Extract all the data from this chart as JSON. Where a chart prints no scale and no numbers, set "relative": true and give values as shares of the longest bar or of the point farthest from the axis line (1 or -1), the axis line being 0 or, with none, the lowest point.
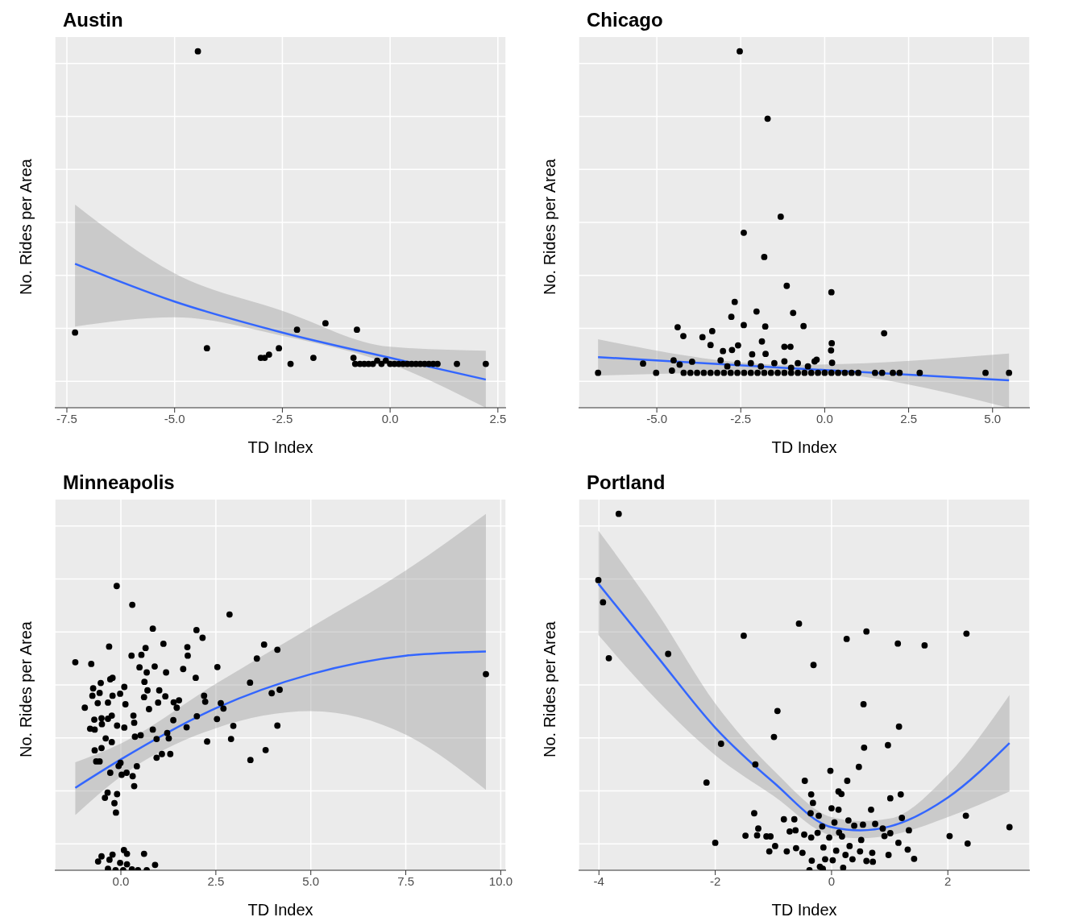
{
  "chart_data": [
    {
      "type": "scatter",
      "title": "Austin",
      "xlabel": "TD Index",
      "ylabel": "No. Rides per Area",
      "relative": true,
      "grid": true,
      "xlim": [
        -7.78,
        2.69
      ],
      "xticks": [
        -7.5,
        {
          "value": -5,
          "label": "-5.0"
        },
        -2.5,
        {
          "value": 0,
          "label": "0.0"
        },
        2.5
      ],
      "series": [
        {
          "color": "#000000",
          "marker": "circle",
          "x": [
            -4.46,
            -7.31,
            -4.25,
            -2.16,
            -1.5,
            -0.77,
            -2.58,
            -2.81,
            -3.0,
            -2.91,
            -2.31,
            -1.78,
            -0.7,
            -0.85,
            -0.81,
            -0.6,
            -0.5,
            -0.4,
            -0.3,
            -0.2,
            -0.1,
            0,
            0.1,
            0.2,
            0.3,
            0.4,
            0.5,
            0.6,
            0.7,
            0.8,
            0.9,
            1.0,
            1.1,
            1.55,
            2.22
          ],
          "values": [
            1.0,
            0.211,
            0.167,
            0.219,
            0.237,
            0.219,
            0.167,
            0.149,
            0.14,
            0.14,
            0.123,
            0.14,
            0.123,
            0.14,
            0.123,
            0.123,
            0.123,
            0.123,
            0.132,
            0.123,
            0.132,
            0.123,
            0.123,
            0.123,
            0.123,
            0.123,
            0.123,
            0.123,
            0.123,
            0.123,
            0.123,
            0.123,
            0.123,
            0.123,
            0.123
          ]
        },
        {
          "type": "line",
          "color": "#3366ff",
          "marker": "none",
          "line_style": "solid",
          "x": [
            -7.31,
            -5,
            -2.5,
            0,
            2.22
          ],
          "values": [
            0.404,
            0.298,
            0.211,
            0.14,
            0.079
          ],
          "lower": [
            0.228,
            0.254,
            0.202,
            0.123,
            0
          ],
          "upper": [
            0.57,
            0.377,
            0.272,
            0.171,
            0.16
          ]
        }
      ]
    },
    {
      "type": "scatter",
      "title": "Chicago",
      "xlabel": "TD Index",
      "ylabel": "No. Rides per Area",
      "relative": true,
      "grid": true,
      "xlim": [
        -7.33,
        6.11
      ],
      "xticks": [
        {
          "value": -5,
          "label": "-5.0"
        },
        -2.5,
        {
          "value": 0,
          "label": "0.0"
        },
        2.5,
        {
          "value": 5,
          "label": "5.0"
        }
      ],
      "series": [
        {
          "color": "#000000",
          "marker": "circle",
          "x": [
            -2.53,
            -1.7,
            -1.31,
            -2.41,
            -1.8,
            -1.13,
            0.2,
            -2.68,
            -2.03,
            -0.94,
            -2.78,
            -2.41,
            -1.77,
            -0.63,
            -4.38,
            1.77,
            -4.21,
            -3.35,
            -3.64,
            -3.4,
            -1.87,
            0.21,
            -1.2,
            -1.02,
            -2.58,
            -3.03,
            -2.76,
            -2.16,
            -1.76,
            0.19,
            0.22,
            -0.24,
            -5.41,
            -4.5,
            -3.95,
            -3.1,
            -6.75,
            -5.02,
            -4.55,
            -4.32,
            1.5,
            1.71,
            2.03,
            2.23,
            2.83,
            4.79,
            5.49,
            -4.2,
            -4.0,
            -3.8,
            -3.6,
            -3.4,
            -3.2,
            -3.0,
            -2.8,
            -2.6,
            -2.4,
            -2.2,
            -2.0,
            -1.8,
            -1.6,
            -1.4,
            -1.2,
            -1.0,
            -0.8,
            -0.6,
            -0.4,
            -0.2,
            0,
            0.2,
            0.4,
            0.6,
            0.8,
            1.0,
            -2.6,
            -2.2,
            -1.9,
            -1.5,
            -1.2,
            -0.8,
            -0.5,
            -0.3,
            -2.9,
            -1.0
          ],
          "values": [
            1.0,
            0.811,
            0.536,
            0.491,
            0.423,
            0.342,
            0.324,
            0.297,
            0.27,
            0.266,
            0.255,
            0.232,
            0.228,
            0.229,
            0.226,
            0.209,
            0.201,
            0.215,
            0.198,
            0.176,
            0.186,
            0.181,
            0.171,
            0.171,
            0.175,
            0.159,
            0.162,
            0.15,
            0.151,
            0.161,
            0.126,
            0.135,
            0.124,
            0.133,
            0.129,
            0.133,
            0.098,
            0.098,
            0.104,
            0.121,
            0.098,
            0.098,
            0.098,
            0.098,
            0.098,
            0.098,
            0.098,
            0.098,
            0.098,
            0.098,
            0.098,
            0.098,
            0.098,
            0.098,
            0.098,
            0.098,
            0.098,
            0.098,
            0.098,
            0.098,
            0.098,
            0.098,
            0.098,
            0.098,
            0.098,
            0.098,
            0.098,
            0.098,
            0.098,
            0.098,
            0.098,
            0.098,
            0.098,
            0.098,
            0.125,
            0.125,
            0.116,
            0.125,
            0.13,
            0.125,
            0.116,
            0.13,
            0.116,
            0.112
          ]
        },
        {
          "type": "line",
          "color": "#3366ff",
          "marker": "none",
          "line_style": "solid",
          "x": [
            -6.75,
            -1,
            5.49
          ],
          "values": [
            0.142,
            0.111,
            0.077
          ],
          "lower": [
            0.09,
            0.102,
            0
          ],
          "upper": [
            0.192,
            0.12,
            0.152
          ]
        }
      ]
    },
    {
      "type": "scatter",
      "title": "Minneapolis",
      "xlabel": "TD Index",
      "ylabel": "No. Rides per Area",
      "relative": true,
      "grid": true,
      "xlim": [
        -1.74,
        10.14
      ],
      "xticks": [
        {
          "value": 0,
          "label": "0.0"
        },
        2.5,
        {
          "value": 5,
          "label": "5.0"
        },
        7.5,
        {
          "value": 10,
          "label": "10.0"
        }
      ],
      "series": [
        {
          "color": "#000000",
          "marker": "circle",
          "x": [
            -0.11,
            0.3,
            2.86,
            0.84,
            1.99,
            2.15,
            1.12,
            -0.31,
            3.77,
            4.12,
            1.75,
            0.65,
            1.76,
            0.28,
            0.54,
            3.58,
            -1.2,
            -0.78,
            0.89,
            0.49,
            2.54,
            1.64,
            0.68,
            1.19,
            1.97,
            -0.28,
            -0.22,
            0.62,
            -0.53,
            3.4,
            0.09,
            -0.73,
            -0.56,
            0.7,
            1.01,
            -0.02,
            -0.22,
            -0.75,
            1.17,
            0.61,
            2.19,
            3.97,
            4.18,
            1.53,
            1.39,
            -0.34,
            -0.61,
            0.12,
            0.98,
            2.22,
            2.63,
            -0.95,
            1.47,
            2.7,
            0.74,
            0.33,
            -0.24,
            -0.51,
            2.0,
            -0.7,
            -0.34,
            1.38,
            2.53,
            0.35,
            -0.5,
            -0.1,
            0.09,
            2.96,
            4.12,
            1.73,
            -0.81,
            -0.69,
            0.84,
            1.22,
            0.52,
            0.37,
            -0.4,
            0.94,
            1.26,
            2.9,
            -0.24,
            2.27,
            -0.51,
            -0.69,
            3.81,
            1.08,
            1.3,
            0.94,
            3.41,
            -0.65,
            -0.56,
            -0.01,
            -0.06,
            0.42,
            -0.28,
            0.02,
            0.15,
            0.31,
            0.35,
            -0.35,
            -0.1,
            -0.42,
            -0.17,
            -0.13,
            9.61,
            0.08,
            0.16,
            0.61,
            -0.51,
            -0.22,
            -0.6,
            -0.3,
            -0.02,
            0.16,
            0.9,
            -0.34,
            -0.14,
            0.06,
            0.29,
            0.45,
            0.68
          ],
          "values": [
            1.0,
            0.934,
            0.9,
            0.85,
            0.845,
            0.818,
            0.797,
            0.787,
            0.794,
            0.776,
            0.785,
            0.782,
            0.755,
            0.755,
            0.758,
            0.745,
            0.732,
            0.726,
            0.717,
            0.714,
            0.715,
            0.708,
            0.696,
            0.696,
            0.677,
            0.672,
            0.677,
            0.663,
            0.659,
            0.66,
            0.645,
            0.64,
            0.624,
            0.633,
            0.633,
            0.621,
            0.614,
            0.614,
            0.612,
            0.609,
            0.614,
            0.623,
            0.635,
            0.598,
            0.591,
            0.59,
            0.588,
            0.584,
            0.59,
            0.593,
            0.588,
            0.572,
            0.572,
            0.569,
            0.567,
            0.544,
            0.544,
            0.535,
            0.542,
            0.53,
            0.533,
            0.528,
            0.532,
            0.519,
            0.514,
            0.509,
            0.502,
            0.508,
            0.509,
            0.503,
            0.498,
            0.495,
            0.495,
            0.483,
            0.475,
            0.47,
            0.464,
            0.462,
            0.464,
            0.462,
            0.451,
            0.453,
            0.43,
            0.422,
            0.423,
            0.409,
            0.409,
            0.396,
            0.388,
            0.383,
            0.383,
            0.378,
            0.367,
            0.366,
            0.343,
            0.336,
            0.343,
            0.331,
            0.296,
            0.273,
            0.268,
            0.255,
            0.236,
            0.203,
            0.69,
            0.071,
            0.058,
            0.058,
            0.049,
            0.055,
            0.031,
            0.037,
            0.026,
            0.021,
            0.019,
            0.005,
            0,
            0,
            0.003,
            0,
            0
          ]
        },
        {
          "type": "line",
          "color": "#3366ff",
          "marker": "none",
          "line_style": "solid",
          "x": [
            -1.2,
            0,
            2.5,
            5,
            7.5,
            9.61
          ],
          "values": [
            0.29,
            0.39,
            0.57,
            0.69,
            0.755,
            0.77
          ],
          "lower": [
            0.194,
            0.33,
            0.5,
            0.56,
            0.477,
            0.283
          ],
          "upper": [
            0.38,
            0.446,
            0.656,
            0.855,
            1.055,
            1.254
          ]
        }
      ]
    },
    {
      "type": "scatter",
      "title": "Portland",
      "xlabel": "TD Index",
      "ylabel": "No. Rides per Area",
      "relative": true,
      "grid": true,
      "xlim": [
        -4.35,
        3.41
      ],
      "xticks": [
        -4,
        -2,
        0,
        2
      ],
      "series": [
        {
          "color": "#000000",
          "marker": "circle",
          "x": [
            -3.66,
            -4.01,
            -3.93,
            -3.83,
            -2.81,
            -1.51,
            -0.56,
            0.26,
            0.6,
            -0.31,
            1.14,
            1.6,
            2.32,
            0.55,
            -0.93,
            1.16,
            -0.99,
            -1.9,
            0.56,
            0.97,
            -1.31,
            0.47,
            -0.02,
            -2.15,
            -0.46,
            0.27,
            0.12,
            0.17,
            -0.35,
            1.19,
            1.01,
            -0.32,
            0.0,
            0.12,
            0.68,
            -1.33,
            -0.36,
            -0.22,
            2.31,
            1.21,
            -0.82,
            -0.64,
            0.05,
            0.29,
            0.54,
            0.75,
            -0.16,
            0.39,
            3.06,
            -1.26,
            -0.72,
            -0.62,
            1.33,
            0.88,
            1.01,
            -0.24,
            0.13,
            -0.47,
            -1.48,
            -1.28,
            -1.12,
            -1.05,
            2.03,
            0.18,
            -0.04,
            -0.35,
            0.91,
            0.51,
            -2.0,
            2.34,
            1.15,
            -0.97,
            0.31,
            -0.61,
            -0.14,
            1.31,
            -1.07,
            -0.77,
            -0.5,
            0.08,
            0.49,
            0.7,
            0.98,
            0.24,
            1.42,
            -0.34,
            -0.11,
            0.02,
            0.36,
            0.6,
            0.71,
            -0.2,
            0.2,
            -0.15,
            -0.38
          ],
          "values": [
            1.0,
            0.814,
            0.752,
            0.595,
            0.607,
            0.658,
            0.692,
            0.649,
            0.67,
            0.576,
            0.636,
            0.631,
            0.664,
            0.466,
            0.447,
            0.403,
            0.374,
            0.355,
            0.344,
            0.351,
            0.297,
            0.29,
            0.279,
            0.246,
            0.251,
            0.251,
            0.221,
            0.214,
            0.213,
            0.213,
            0.202,
            0.189,
            0.174,
            0.17,
            0.17,
            0.16,
            0.16,
            0.153,
            0.153,
            0.147,
            0.143,
            0.143,
            0.134,
            0.14,
            0.128,
            0.13,
            0.123,
            0.125,
            0.121,
            0.117,
            0.109,
            0.112,
            0.112,
            0.117,
            0.104,
            0.105,
            0.106,
            0.1,
            0.097,
            0.098,
            0.095,
            0.095,
            0.096,
            0.095,
            0.092,
            0.092,
            0.096,
            0.085,
            0.077,
            0.075,
            0.077,
            0.068,
            0.068,
            0.062,
            0.064,
            0.058,
            0.053,
            0.053,
            0.049,
            0.055,
            0.053,
            0.049,
            0.043,
            0.043,
            0.032,
            0.027,
            0.031,
            0.028,
            0.031,
            0.026,
            0.024,
            0.01,
            0.007,
            0.004,
            0
          ]
        },
        {
          "type": "line",
          "color": "#3366ff",
          "marker": "none",
          "line_style": "solid",
          "x": [
            -4.01,
            -3,
            -2,
            -1,
            0,
            0.5,
            1,
            2,
            3.06
          ],
          "values": [
            0.804,
            0.6,
            0.4,
            0.247,
            0.121,
            0.112,
            0.123,
            0.204,
            0.357
          ],
          "lower": [
            0.66,
            0.477,
            0.323,
            0.209,
            0.098,
            0.09,
            0.098,
            0.149,
            0.221
          ],
          "upper": [
            0.953,
            0.723,
            0.468,
            0.281,
            0.149,
            0.138,
            0.145,
            0.268,
            0.492
          ]
        }
      ]
    }
  ]
}
